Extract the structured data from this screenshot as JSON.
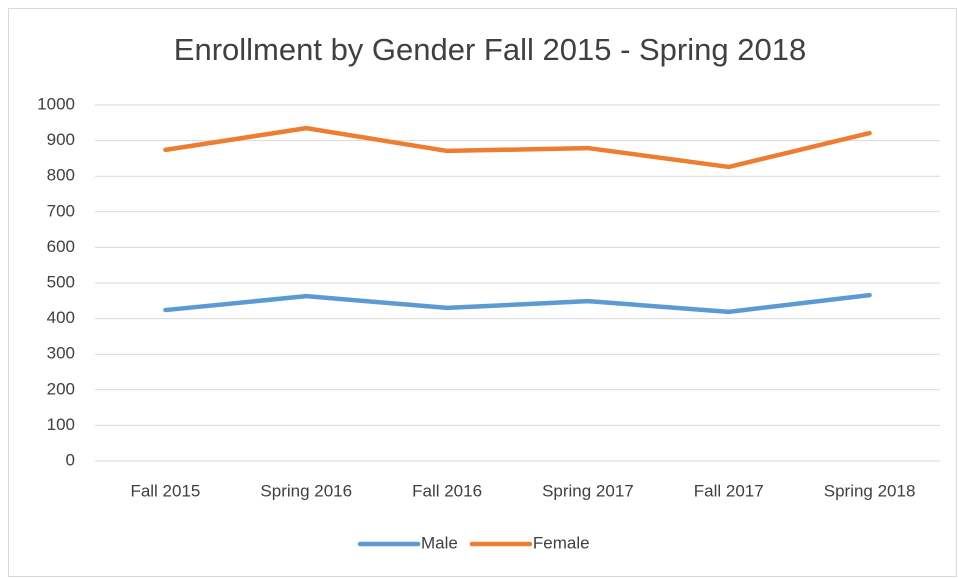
{
  "chart_data": {
    "type": "line",
    "title": "Enrollment by Gender Fall 2015 - Spring 2018",
    "categories": [
      "Fall 2015",
      "Spring 2016",
      "Fall 2016",
      "Spring 2017",
      "Fall 2017",
      "Spring 2018"
    ],
    "series": [
      {
        "name": "Male",
        "color": "#5b9bd5",
        "values": [
          424,
          463,
          430,
          449,
          419,
          466
        ]
      },
      {
        "name": "Female",
        "color": "#ed7d31",
        "values": [
          874,
          935,
          871,
          879,
          826,
          921
        ]
      }
    ],
    "ylim": [
      0,
      1000
    ],
    "yticks": [
      0,
      100,
      200,
      300,
      400,
      500,
      600,
      700,
      800,
      900,
      1000
    ],
    "grid": true,
    "legend": "bottom"
  }
}
